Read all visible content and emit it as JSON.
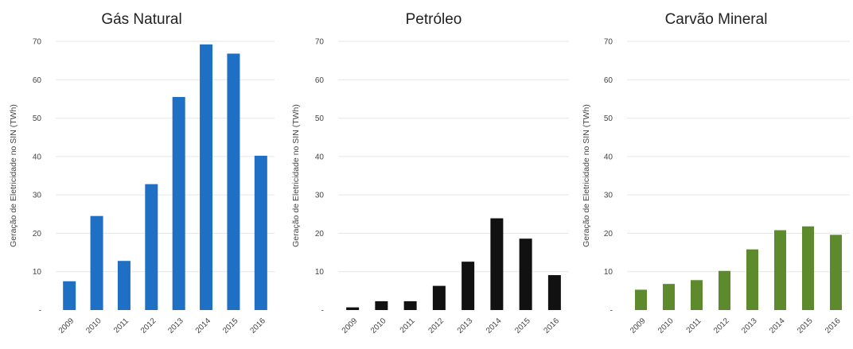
{
  "chart_data": [
    {
      "type": "bar",
      "title": "Gás Natural",
      "ylabel": "Geração de Eletricidade no SIN (TWh)",
      "xlabel": "",
      "categories": [
        "2009",
        "2010",
        "2011",
        "2012",
        "2013",
        "2014",
        "2015",
        "2016"
      ],
      "values": [
        7.5,
        24.5,
        12.8,
        32.8,
        55.5,
        69.2,
        66.8,
        40.2
      ],
      "ylim": [
        0,
        70
      ],
      "yticks": [
        "-",
        "10",
        "20",
        "30",
        "40",
        "50",
        "60",
        "70"
      ],
      "color": "#1f6fc4",
      "grid": true
    },
    {
      "type": "bar",
      "title": "Petróleo",
      "ylabel": "Geração de Eletricidade no SIN (TWh)",
      "xlabel": "",
      "categories": [
        "2009",
        "2010",
        "2011",
        "2012",
        "2013",
        "2014",
        "2015",
        "2016"
      ],
      "values": [
        0.7,
        2.3,
        2.3,
        6.3,
        12.6,
        23.9,
        18.6,
        9.1
      ],
      "ylim": [
        0,
        70
      ],
      "yticks": [
        "-",
        "10",
        "20",
        "30",
        "40",
        "50",
        "60",
        "70"
      ],
      "color": "#111111",
      "grid": true
    },
    {
      "type": "bar",
      "title": "Carvão Mineral",
      "ylabel": "Geração de Eletricidade no SIN (TWh)",
      "xlabel": "",
      "categories": [
        "2009",
        "2010",
        "2011",
        "2012",
        "2013",
        "2014",
        "2015",
        "2016"
      ],
      "values": [
        5.3,
        6.8,
        7.8,
        10.2,
        15.8,
        20.8,
        21.8,
        19.6
      ],
      "ylim": [
        0,
        70
      ],
      "yticks": [
        "-",
        "10",
        "20",
        "30",
        "40",
        "50",
        "60",
        "70"
      ],
      "color": "#5e8a2e",
      "grid": true
    }
  ]
}
